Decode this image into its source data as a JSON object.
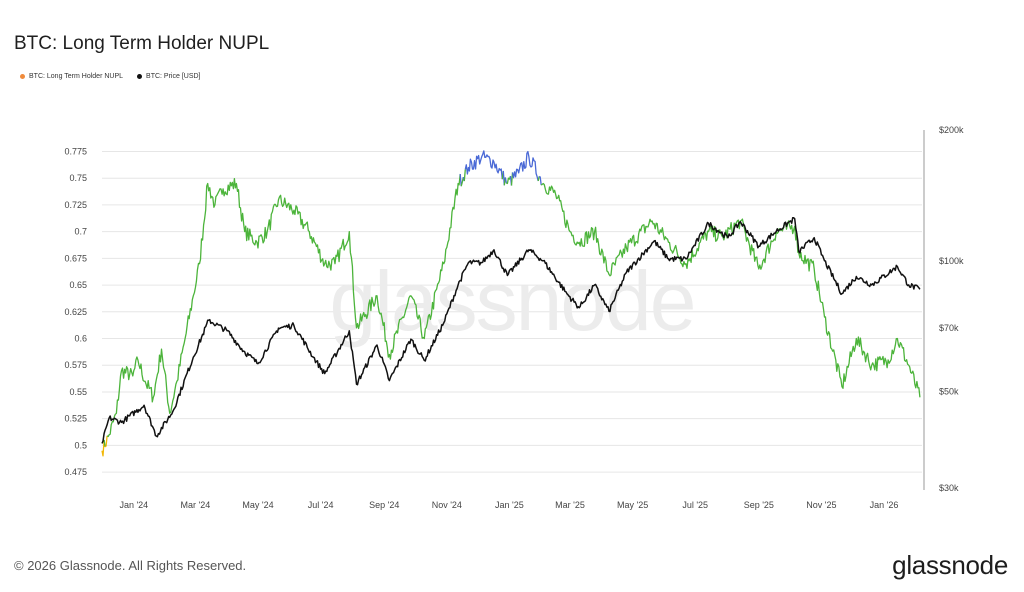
{
  "title": "BTC: Long Term Holder NUPL",
  "watermark": "glassnode",
  "footer": "© 2026 Glassnode. All Rights Reserved.",
  "brand": "glassnode",
  "colors": {
    "nupl_green": "#4cb43b",
    "nupl_blue": "#4a69d6",
    "nupl_yellow": "#f2b705",
    "price": "#111111",
    "legend_nupl": "#f08b3c",
    "grid": "#e6e6e6",
    "right_axis": "#9a9a9a"
  },
  "chart_data": {
    "type": "line",
    "title": "BTC: Long Term Holder NUPL",
    "legend": [
      "BTC: Long Term Holder NUPL",
      "BTC: Price [USD]"
    ],
    "x_ticks": [
      "Jan '24",
      "Mar '24",
      "May '24",
      "Jul '24",
      "Sep '24",
      "Nov '24",
      "Jan '25",
      "Mar '25",
      "May '25",
      "Jul '25",
      "Sep '25",
      "Nov '25",
      "Jan '26"
    ],
    "y_left_ticks": [
      0.475,
      0.5,
      0.525,
      0.55,
      0.575,
      0.6,
      0.625,
      0.65,
      0.675,
      0.7,
      0.725,
      0.75,
      0.775
    ],
    "y_left_range": [
      0.462,
      0.782
    ],
    "y_right_ticks": [
      {
        "value": 200000,
        "label": "$200k"
      },
      {
        "value": 100000,
        "label": "$100k"
      },
      {
        "value": 70000,
        "label": "$70k"
      },
      {
        "value": 50000,
        "label": "$50k"
      },
      {
        "value": 30000,
        "label": "$30k"
      }
    ],
    "y_right_scale": "log",
    "grid": true,
    "x_range": [
      "2023-12-01",
      "2026-02-07"
    ],
    "series": [
      {
        "name": "BTC: Long Term Holder NUPL",
        "axis": "left",
        "points": [
          [
            "2023-12-01",
            0.495
          ],
          [
            "2023-12-08",
            0.51
          ],
          [
            "2023-12-15",
            0.53
          ],
          [
            "2023-12-20",
            0.57
          ],
          [
            "2023-12-31",
            0.565
          ],
          [
            "2024-01-05",
            0.58
          ],
          [
            "2024-01-12",
            0.56
          ],
          [
            "2024-01-20",
            0.545
          ],
          [
            "2024-01-28",
            0.59
          ],
          [
            "2024-02-05",
            0.53
          ],
          [
            "2024-02-12",
            0.56
          ],
          [
            "2024-02-20",
            0.6
          ],
          [
            "2024-02-28",
            0.64
          ],
          [
            "2024-03-05",
            0.67
          ],
          [
            "2024-03-13",
            0.745
          ],
          [
            "2024-03-20",
            0.725
          ],
          [
            "2024-03-28",
            0.74
          ],
          [
            "2024-04-10",
            0.745
          ],
          [
            "2024-04-18",
            0.7
          ],
          [
            "2024-04-30",
            0.69
          ],
          [
            "2024-05-10",
            0.7
          ],
          [
            "2024-05-21",
            0.73
          ],
          [
            "2024-06-05",
            0.72
          ],
          [
            "2024-06-20",
            0.7
          ],
          [
            "2024-07-05",
            0.67
          ],
          [
            "2024-07-15",
            0.67
          ],
          [
            "2024-07-29",
            0.7
          ],
          [
            "2024-08-05",
            0.61
          ],
          [
            "2024-08-25",
            0.64
          ],
          [
            "2024-09-06",
            0.585
          ],
          [
            "2024-09-27",
            0.64
          ],
          [
            "2024-10-10",
            0.6
          ],
          [
            "2024-10-29",
            0.67
          ],
          [
            "2024-11-12",
            0.745
          ],
          [
            "2024-11-22",
            0.76
          ],
          [
            "2024-12-05",
            0.77
          ],
          [
            "2024-12-17",
            0.765
          ],
          [
            "2024-12-30",
            0.745
          ],
          [
            "2025-01-10",
            0.755
          ],
          [
            "2025-01-20",
            0.77
          ],
          [
            "2025-02-03",
            0.745
          ],
          [
            "2025-02-15",
            0.735
          ],
          [
            "2025-03-01",
            0.7
          ],
          [
            "2025-03-10",
            0.69
          ],
          [
            "2025-03-25",
            0.7
          ],
          [
            "2025-04-08",
            0.66
          ],
          [
            "2025-04-25",
            0.685
          ],
          [
            "2025-05-20",
            0.71
          ],
          [
            "2025-06-05",
            0.69
          ],
          [
            "2025-06-22",
            0.67
          ],
          [
            "2025-07-14",
            0.7
          ],
          [
            "2025-07-28",
            0.695
          ],
          [
            "2025-08-14",
            0.71
          ],
          [
            "2025-09-01",
            0.665
          ],
          [
            "2025-09-18",
            0.7
          ],
          [
            "2025-10-06",
            0.705
          ],
          [
            "2025-10-10",
            0.68
          ],
          [
            "2025-10-25",
            0.665
          ],
          [
            "2025-11-04",
            0.62
          ],
          [
            "2025-11-21",
            0.555
          ],
          [
            "2025-12-05",
            0.6
          ],
          [
            "2025-12-20",
            0.575
          ],
          [
            "2026-01-05",
            0.58
          ],
          [
            "2026-01-14",
            0.6
          ],
          [
            "2026-01-25",
            0.575
          ],
          [
            "2026-02-05",
            0.545
          ]
        ]
      },
      {
        "name": "BTC: Price [USD]",
        "axis": "right",
        "points": [
          [
            "2023-12-01",
            38000
          ],
          [
            "2023-12-08",
            43500
          ],
          [
            "2023-12-20",
            42500
          ],
          [
            "2024-01-11",
            46500
          ],
          [
            "2024-01-23",
            39500
          ],
          [
            "2024-02-08",
            45000
          ],
          [
            "2024-02-28",
            60000
          ],
          [
            "2024-03-14",
            73000
          ],
          [
            "2024-04-01",
            69000
          ],
          [
            "2024-04-17",
            62000
          ],
          [
            "2024-05-01",
            58000
          ],
          [
            "2024-05-21",
            70000
          ],
          [
            "2024-06-05",
            71000
          ],
          [
            "2024-06-24",
            60000
          ],
          [
            "2024-07-05",
            55000
          ],
          [
            "2024-07-29",
            69000
          ],
          [
            "2024-08-05",
            52000
          ],
          [
            "2024-08-25",
            64000
          ],
          [
            "2024-09-06",
            53000
          ],
          [
            "2024-09-27",
            66000
          ],
          [
            "2024-10-10",
            59000
          ],
          [
            "2024-10-29",
            72000
          ],
          [
            "2024-11-12",
            88000
          ],
          [
            "2024-11-22",
            99000
          ],
          [
            "2024-12-05",
            99000
          ],
          [
            "2024-12-17",
            106000
          ],
          [
            "2024-12-30",
            92500
          ],
          [
            "2025-01-20",
            106000
          ],
          [
            "2025-02-03",
            100000
          ],
          [
            "2025-02-26",
            84000
          ],
          [
            "2025-03-10",
            78000
          ],
          [
            "2025-03-25",
            88000
          ],
          [
            "2025-04-08",
            76500
          ],
          [
            "2025-04-25",
            94000
          ],
          [
            "2025-05-22",
            111000
          ],
          [
            "2025-06-05",
            101000
          ],
          [
            "2025-06-22",
            101000
          ],
          [
            "2025-07-14",
            122000
          ],
          [
            "2025-08-02",
            113000
          ],
          [
            "2025-08-14",
            123000
          ],
          [
            "2025-09-01",
            108000
          ],
          [
            "2025-09-18",
            117000
          ],
          [
            "2025-10-06",
            125000
          ],
          [
            "2025-10-10",
            105000
          ],
          [
            "2025-10-25",
            113000
          ],
          [
            "2025-11-04",
            100000
          ],
          [
            "2025-11-21",
            84000
          ],
          [
            "2025-12-05",
            92000
          ],
          [
            "2025-12-20",
            88000
          ],
          [
            "2026-01-14",
            97000
          ],
          [
            "2026-01-25",
            88000
          ],
          [
            "2026-02-05",
            86000
          ]
        ]
      }
    ]
  }
}
